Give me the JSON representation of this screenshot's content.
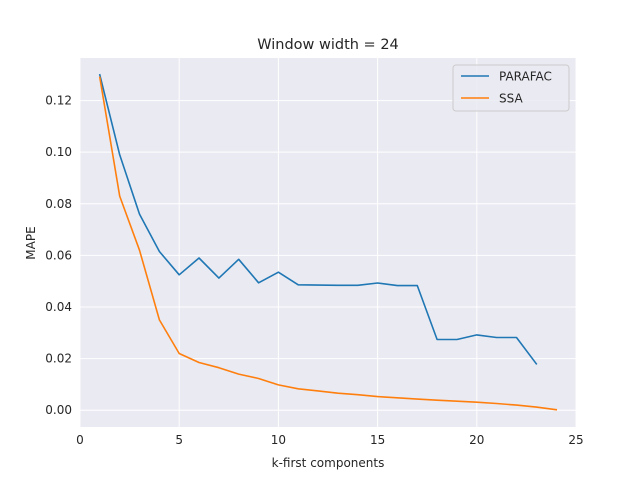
{
  "chart_data": {
    "type": "line",
    "title": "Window width = 24",
    "xlabel": "k-first components",
    "ylabel": "MAPE",
    "xlim": [
      0,
      25
    ],
    "ylim": [
      -0.0065,
      0.1365
    ],
    "xticks": [
      0,
      5,
      10,
      15,
      20,
      25
    ],
    "yticks": [
      0.0,
      0.02,
      0.04,
      0.06,
      0.08,
      0.1,
      0.12
    ],
    "ytick_labels": [
      "0.00",
      "0.02",
      "0.04",
      "0.06",
      "0.08",
      "0.10",
      "0.12"
    ],
    "grid": true,
    "legend_position": "top-right",
    "series": [
      {
        "name": "PARAFAC",
        "color": "#1f77b4",
        "x": [
          1,
          2,
          3,
          4,
          5,
          6,
          7,
          8,
          9,
          10,
          11,
          12,
          13,
          14,
          15,
          16,
          17,
          18,
          19,
          20,
          21,
          22,
          23
        ],
        "values": [
          0.13,
          0.099,
          0.076,
          0.0615,
          0.0525,
          0.059,
          0.0512,
          0.0585,
          0.0494,
          0.0535,
          0.0486,
          0.0485,
          0.0484,
          0.0484,
          0.0493,
          0.0483,
          0.0483,
          0.0274,
          0.0274,
          0.0292,
          0.0282,
          0.0282,
          0.018
        ]
      },
      {
        "name": "SSA",
        "color": "#ff7f0e",
        "x": [
          1,
          2,
          3,
          4,
          5,
          6,
          7,
          8,
          9,
          10,
          11,
          12,
          13,
          14,
          15,
          16,
          17,
          18,
          19,
          20,
          21,
          22,
          23,
          24
        ],
        "values": [
          0.129,
          0.083,
          0.062,
          0.035,
          0.022,
          0.0185,
          0.0165,
          0.014,
          0.0123,
          0.0098,
          0.0083,
          0.0075,
          0.0066,
          0.006,
          0.0053,
          0.0048,
          0.0043,
          0.0039,
          0.0035,
          0.0031,
          0.0026,
          0.002,
          0.0012,
          0.0002
        ]
      }
    ]
  }
}
